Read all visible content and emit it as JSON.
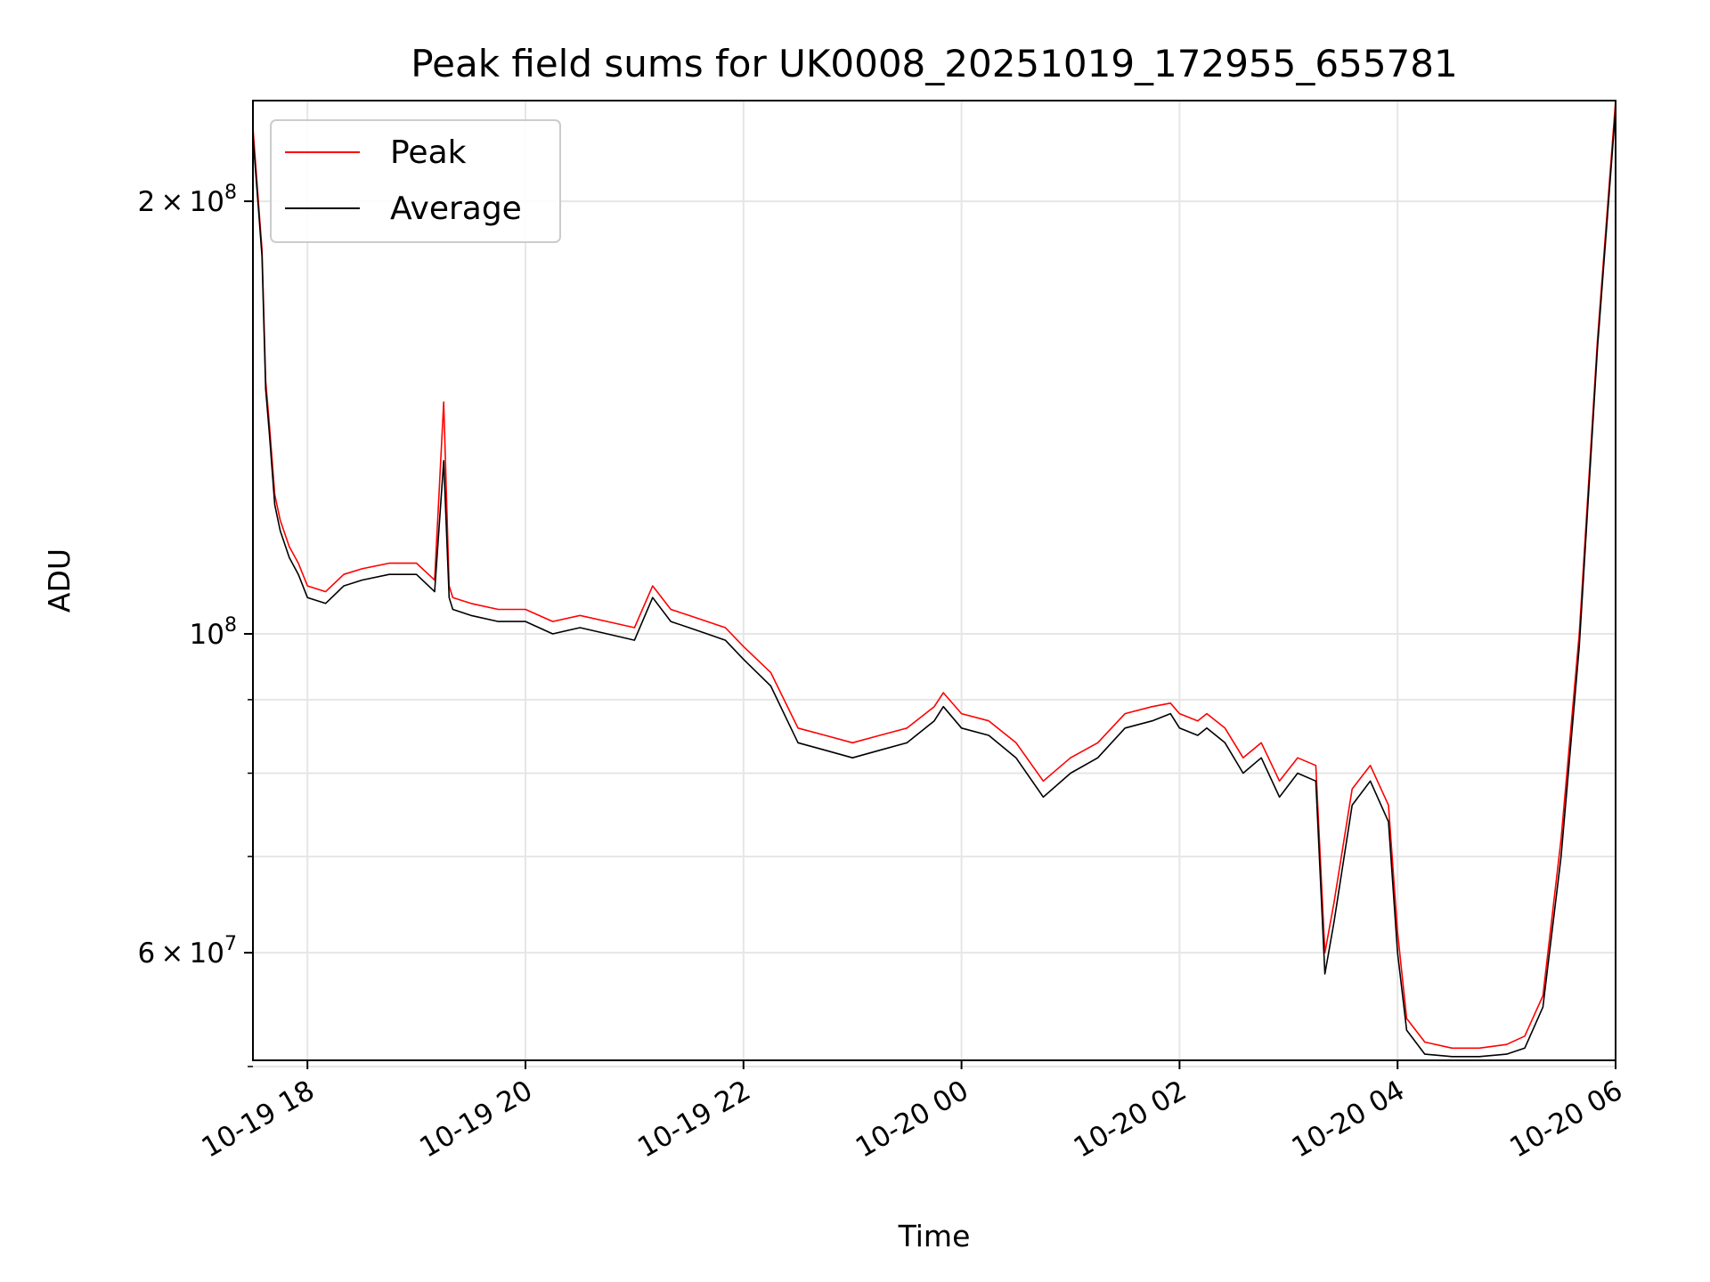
{
  "chart_data": {
    "type": "line",
    "title": "Peak field sums for UK0008_20251019_172955_655781",
    "xlabel": "Time",
    "ylabel": "ADU",
    "y_scale": "log",
    "ylim": [
      50500000,
      235000000
    ],
    "xlim": [
      "2025-10-19 17:30",
      "2025-10-20 06:00"
    ],
    "x_ticks": [
      {
        "value": "2025-10-19 18:00",
        "label": "10-19 18"
      },
      {
        "value": "2025-10-19 20:00",
        "label": "10-19 20"
      },
      {
        "value": "2025-10-19 22:00",
        "label": "10-19 22"
      },
      {
        "value": "2025-10-20 00:00",
        "label": "10-20 00"
      },
      {
        "value": "2025-10-20 02:00",
        "label": "10-20 02"
      },
      {
        "value": "2025-10-20 04:00",
        "label": "10-20 04"
      },
      {
        "value": "2025-10-20 06:00",
        "label": "10-20 06"
      }
    ],
    "y_ticks": [
      {
        "value": 200000000,
        "mantissa": "2",
        "exponent": "8"
      },
      {
        "value": 100000000,
        "mantissa": "",
        "exponent": "8"
      },
      {
        "value": 60000000,
        "mantissa": "6",
        "exponent": "7"
      }
    ],
    "y_minor_ticks": [
      50000000,
      70000000,
      80000000,
      90000000
    ],
    "grid": true,
    "legend": {
      "position": "upper left"
    },
    "series": [
      {
        "name": "Peak",
        "color": "#ff0000",
        "x": [
          "2025-10-19 17:30",
          "2025-10-19 17:33",
          "2025-10-19 17:35",
          "2025-10-19 17:37",
          "2025-10-19 17:39",
          "2025-10-19 17:42",
          "2025-10-19 17:45",
          "2025-10-19 17:50",
          "2025-10-19 17:55",
          "2025-10-19 18:00",
          "2025-10-19 18:10",
          "2025-10-19 18:20",
          "2025-10-19 18:30",
          "2025-10-19 18:45",
          "2025-10-19 19:00",
          "2025-10-19 19:10",
          "2025-10-19 19:15",
          "2025-10-19 19:18",
          "2025-10-19 19:20",
          "2025-10-19 19:30",
          "2025-10-19 19:45",
          "2025-10-19 20:00",
          "2025-10-19 20:15",
          "2025-10-19 20:30",
          "2025-10-19 20:45",
          "2025-10-19 21:00",
          "2025-10-19 21:10",
          "2025-10-19 21:20",
          "2025-10-19 21:30",
          "2025-10-19 21:40",
          "2025-10-19 21:50",
          "2025-10-19 22:00",
          "2025-10-19 22:15",
          "2025-10-19 22:30",
          "2025-10-19 22:45",
          "2025-10-19 23:00",
          "2025-10-19 23:15",
          "2025-10-19 23:30",
          "2025-10-19 23:45",
          "2025-10-19 23:50",
          "2025-10-20 00:00",
          "2025-10-20 00:15",
          "2025-10-20 00:30",
          "2025-10-20 00:45",
          "2025-10-20 01:00",
          "2025-10-20 01:15",
          "2025-10-20 01:30",
          "2025-10-20 01:45",
          "2025-10-20 01:55",
          "2025-10-20 02:00",
          "2025-10-20 02:10",
          "2025-10-20 02:15",
          "2025-10-20 02:25",
          "2025-10-20 02:35",
          "2025-10-20 02:45",
          "2025-10-20 02:55",
          "2025-10-20 03:05",
          "2025-10-20 03:15",
          "2025-10-20 03:20",
          "2025-10-20 03:25",
          "2025-10-20 03:35",
          "2025-10-20 03:45",
          "2025-10-20 03:55",
          "2025-10-20 04:00",
          "2025-10-20 04:05",
          "2025-10-20 04:15",
          "2025-10-20 04:30",
          "2025-10-20 04:45",
          "2025-10-20 05:00",
          "2025-10-20 05:10",
          "2025-10-20 05:20",
          "2025-10-20 05:30",
          "2025-10-20 05:40",
          "2025-10-20 05:50",
          "2025-10-20 06:00"
        ],
        "values": [
          225000000,
          200000000,
          185000000,
          150000000,
          140000000,
          125000000,
          120000000,
          115000000,
          112000000,
          108000000,
          107000000,
          110000000,
          111000000,
          112000000,
          112000000,
          109000000,
          145000000,
          108000000,
          106000000,
          105000000,
          104000000,
          104000000,
          102000000,
          103000000,
          102000000,
          101000000,
          108000000,
          104000000,
          103000000,
          102000000,
          101000000,
          98000000,
          94000000,
          86000000,
          85000000,
          84000000,
          85000000,
          86000000,
          89000000,
          91000000,
          88000000,
          87000000,
          84000000,
          79000000,
          82000000,
          84000000,
          88000000,
          89000000,
          89500000,
          88000000,
          87000000,
          88000000,
          86000000,
          82000000,
          84000000,
          79000000,
          82000000,
          81000000,
          60000000,
          65000000,
          78000000,
          81000000,
          76000000,
          62000000,
          54000000,
          52000000,
          51500000,
          51500000,
          51800000,
          52500000,
          56000000,
          72000000,
          100000000,
          160000000,
          235000000
        ]
      },
      {
        "name": "Average",
        "color": "#000000",
        "x": [
          "2025-10-19 17:30",
          "2025-10-19 17:33",
          "2025-10-19 17:35",
          "2025-10-19 17:37",
          "2025-10-19 17:39",
          "2025-10-19 17:42",
          "2025-10-19 17:45",
          "2025-10-19 17:50",
          "2025-10-19 17:55",
          "2025-10-19 18:00",
          "2025-10-19 18:10",
          "2025-10-19 18:20",
          "2025-10-19 18:30",
          "2025-10-19 18:45",
          "2025-10-19 19:00",
          "2025-10-19 19:10",
          "2025-10-19 19:15",
          "2025-10-19 19:18",
          "2025-10-19 19:20",
          "2025-10-19 19:30",
          "2025-10-19 19:45",
          "2025-10-19 20:00",
          "2025-10-19 20:15",
          "2025-10-19 20:30",
          "2025-10-19 20:45",
          "2025-10-19 21:00",
          "2025-10-19 21:10",
          "2025-10-19 21:20",
          "2025-10-19 21:30",
          "2025-10-19 21:40",
          "2025-10-19 21:50",
          "2025-10-19 22:00",
          "2025-10-19 22:15",
          "2025-10-19 22:30",
          "2025-10-19 22:45",
          "2025-10-19 23:00",
          "2025-10-19 23:15",
          "2025-10-19 23:30",
          "2025-10-19 23:45",
          "2025-10-19 23:50",
          "2025-10-20 00:00",
          "2025-10-20 00:15",
          "2025-10-20 00:30",
          "2025-10-20 00:45",
          "2025-10-20 01:00",
          "2025-10-20 01:15",
          "2025-10-20 01:30",
          "2025-10-20 01:45",
          "2025-10-20 01:55",
          "2025-10-20 02:00",
          "2025-10-20 02:10",
          "2025-10-20 02:15",
          "2025-10-20 02:25",
          "2025-10-20 02:35",
          "2025-10-20 02:45",
          "2025-10-20 02:55",
          "2025-10-20 03:05",
          "2025-10-20 03:15",
          "2025-10-20 03:20",
          "2025-10-20 03:25",
          "2025-10-20 03:35",
          "2025-10-20 03:45",
          "2025-10-20 03:55",
          "2025-10-20 04:00",
          "2025-10-20 04:05",
          "2025-10-20 04:15",
          "2025-10-20 04:30",
          "2025-10-20 04:45",
          "2025-10-20 05:00",
          "2025-10-20 05:10",
          "2025-10-20 05:20",
          "2025-10-20 05:30",
          "2025-10-20 05:40",
          "2025-10-20 05:50",
          "2025-10-20 06:00"
        ],
        "values": [
          222000000,
          198000000,
          183000000,
          148000000,
          138000000,
          123000000,
          118000000,
          113000000,
          110000000,
          106000000,
          105000000,
          108000000,
          109000000,
          110000000,
          110000000,
          107000000,
          132000000,
          106000000,
          104000000,
          103000000,
          102000000,
          102000000,
          100000000,
          101000000,
          100000000,
          99000000,
          106000000,
          102000000,
          101000000,
          100000000,
          99000000,
          96000000,
          92000000,
          84000000,
          83000000,
          82000000,
          83000000,
          84000000,
          87000000,
          89000000,
          86000000,
          85000000,
          82000000,
          77000000,
          80000000,
          82000000,
          86000000,
          87000000,
          88000000,
          86000000,
          85000000,
          86000000,
          84000000,
          80000000,
          82000000,
          77000000,
          80000000,
          79000000,
          58000000,
          63000000,
          76000000,
          79000000,
          74000000,
          60000000,
          53000000,
          51000000,
          50800000,
          50800000,
          51000000,
          51500000,
          55000000,
          70000000,
          98000000,
          158000000,
          232000000
        ]
      }
    ]
  }
}
